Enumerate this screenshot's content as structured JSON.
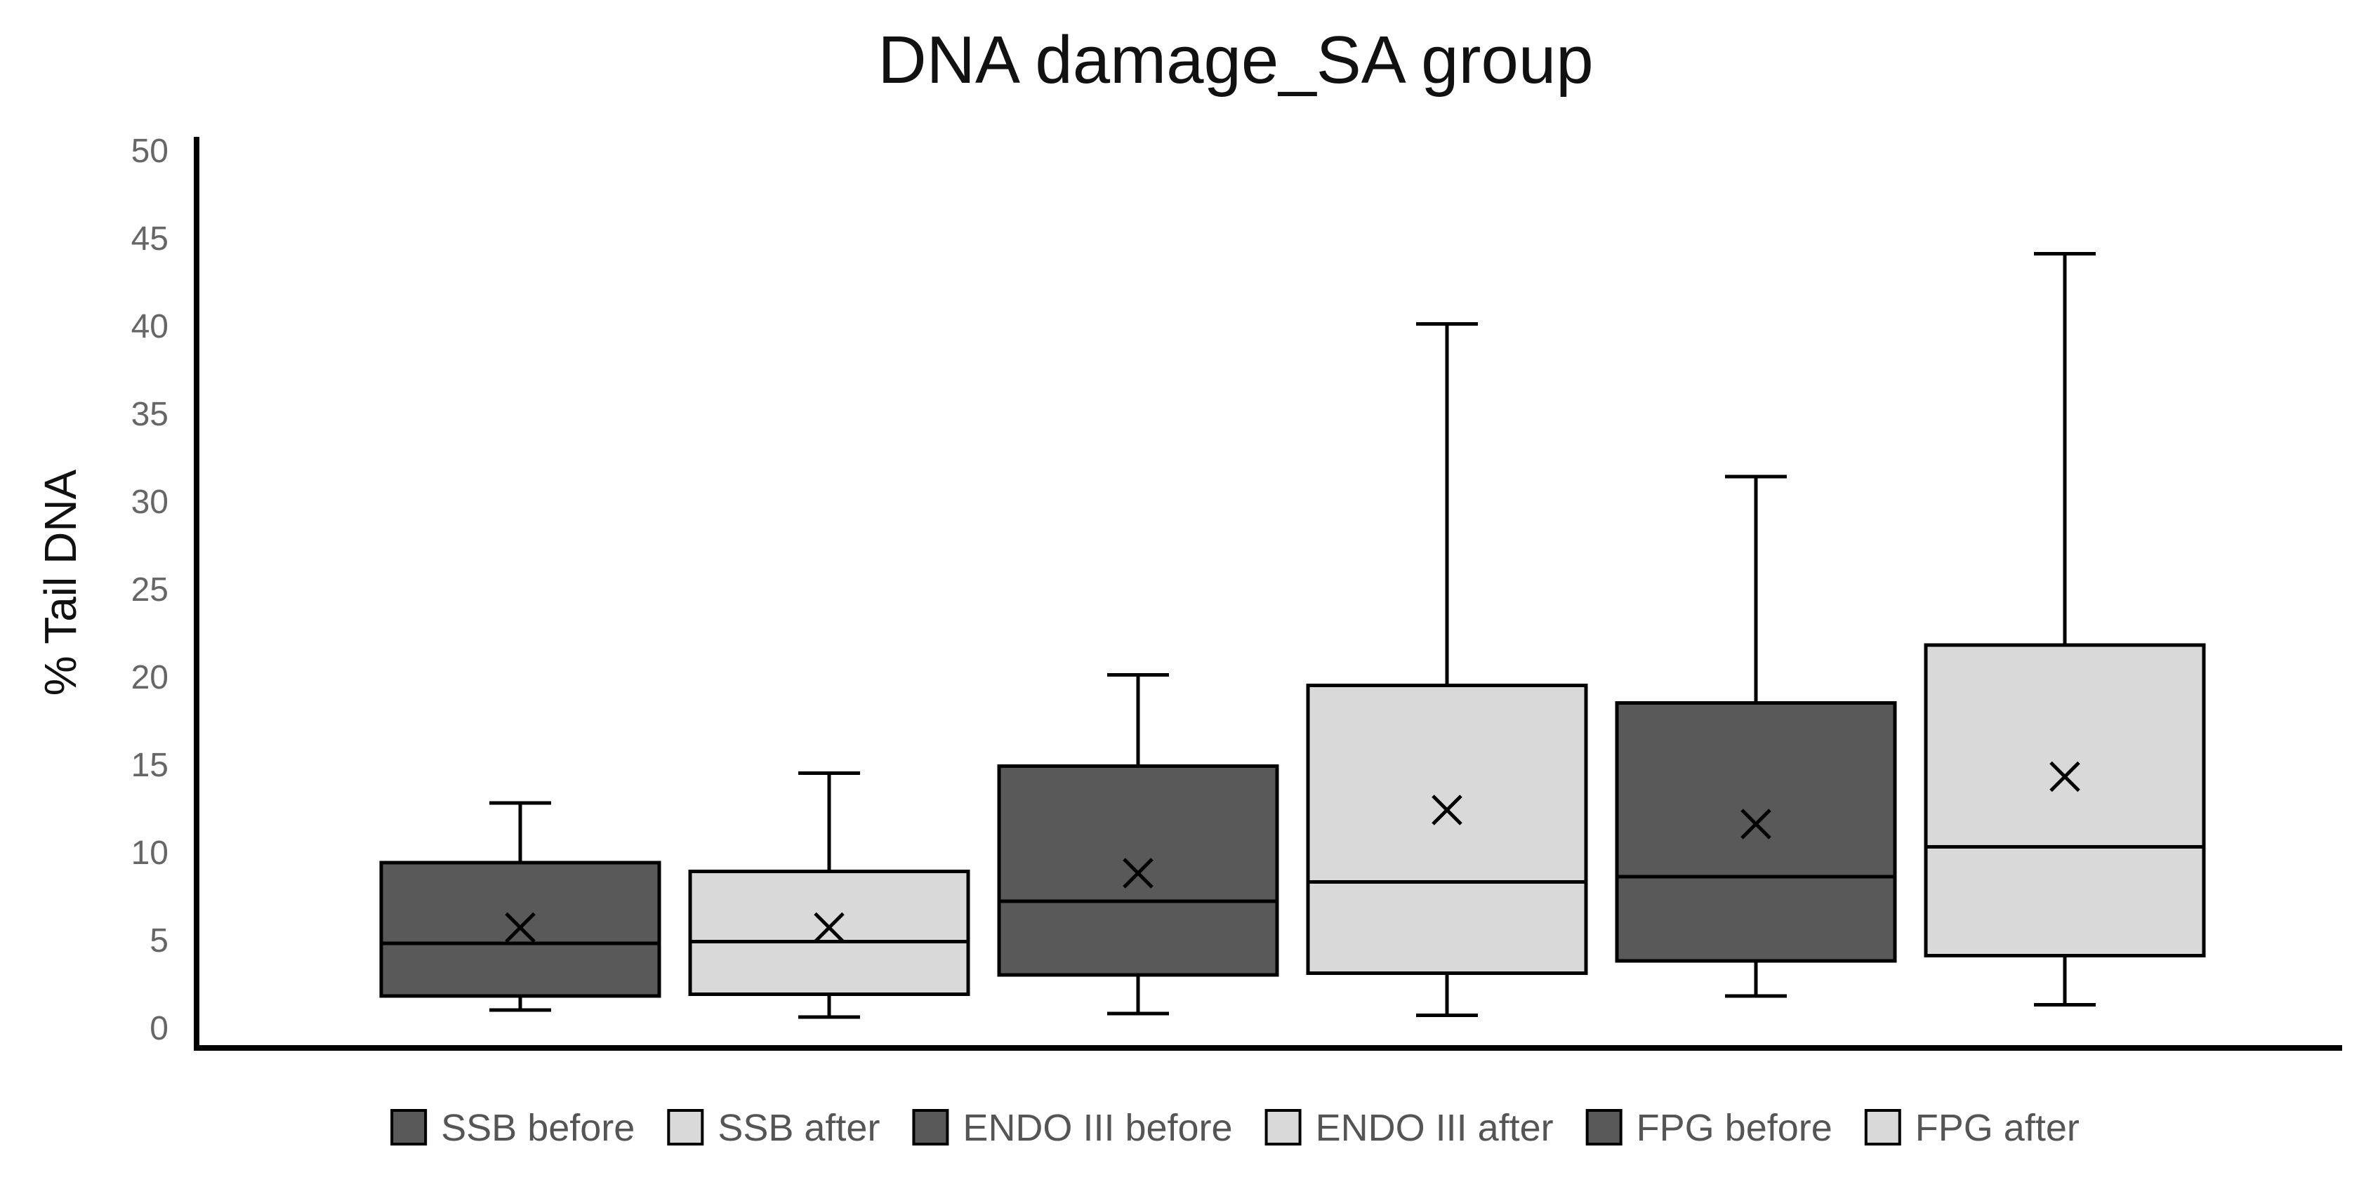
{
  "chart_data": {
    "type": "box",
    "title": "DNA damage_SA group",
    "xlabel": "",
    "ylabel": "% Tail DNA",
    "ylim": [
      0,
      50
    ],
    "yticks": [
      0,
      5,
      10,
      15,
      20,
      25,
      30,
      35,
      40,
      45,
      50
    ],
    "grid": false,
    "legend_position": "bottom",
    "series": [
      {
        "name": "SSB before",
        "color": "#595959",
        "min": 1.0,
        "q1": 1.8,
        "median": 4.8,
        "q3": 9.4,
        "max": 12.8,
        "mean": 5.7
      },
      {
        "name": "SSB after",
        "color": "#d9d9d9",
        "min": 0.6,
        "q1": 1.9,
        "median": 4.9,
        "q3": 8.9,
        "max": 14.5,
        "mean": 5.7
      },
      {
        "name": "ENDO III before",
        "color": "#595959",
        "min": 0.8,
        "q1": 3.0,
        "median": 7.2,
        "q3": 14.9,
        "max": 20.1,
        "mean": 8.8
      },
      {
        "name": "ENDO III after",
        "color": "#d9d9d9",
        "min": 0.7,
        "q1": 3.1,
        "median": 8.3,
        "q3": 19.5,
        "max": 40.1,
        "mean": 12.4
      },
      {
        "name": "FPG before",
        "color": "#595959",
        "min": 1.8,
        "q1": 3.8,
        "median": 8.6,
        "q3": 18.5,
        "max": 31.4,
        "mean": 11.6
      },
      {
        "name": "FPG after",
        "color": "#d9d9d9",
        "min": 1.3,
        "q1": 4.1,
        "median": 10.3,
        "q3": 21.8,
        "max": 44.1,
        "mean": 14.3
      }
    ]
  }
}
